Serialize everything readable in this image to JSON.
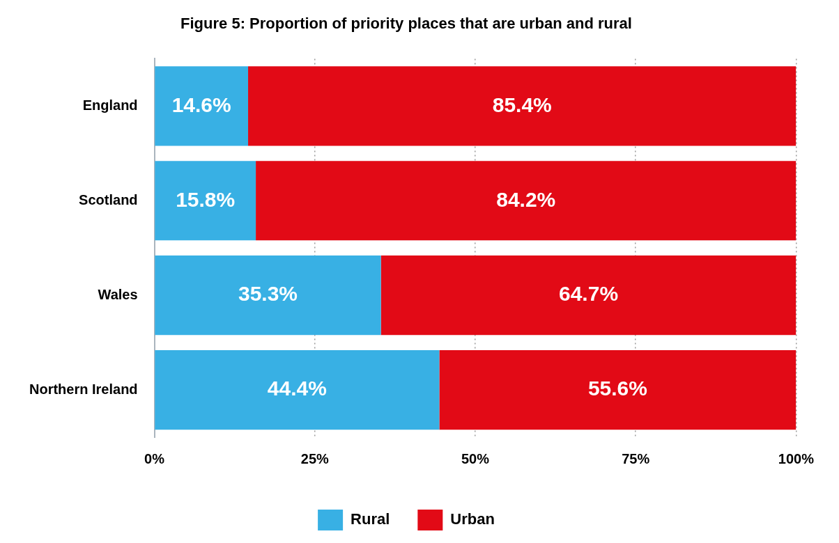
{
  "chart_data": {
    "type": "bar",
    "title": "Figure 5: Proportion of priority places that are urban and rural",
    "orientation": "horizontal",
    "stacked": true,
    "categories": [
      "England",
      "Scotland",
      "Wales",
      "Northern Ireland"
    ],
    "series": [
      {
        "name": "Rural",
        "color": "#38b0e4",
        "values": [
          14.6,
          15.8,
          35.3,
          44.4
        ],
        "value_labels": [
          "14.6%",
          "15.8%",
          "35.3%",
          "44.4%"
        ]
      },
      {
        "name": "Urban",
        "color": "#e20a16",
        "values": [
          85.4,
          84.2,
          64.7,
          55.6
        ],
        "value_labels": [
          "85.4%",
          "84.2%",
          "64.7%",
          "55.6%"
        ]
      }
    ],
    "xlim": [
      0,
      100
    ],
    "xticks": [
      {
        "value": 0,
        "label": "0%"
      },
      {
        "value": 25,
        "label": "25%"
      },
      {
        "value": 50,
        "label": "50%"
      },
      {
        "value": 75,
        "label": "75%"
      },
      {
        "value": 100,
        "label": "100%"
      }
    ],
    "grid": "x",
    "legend": "bottom"
  }
}
